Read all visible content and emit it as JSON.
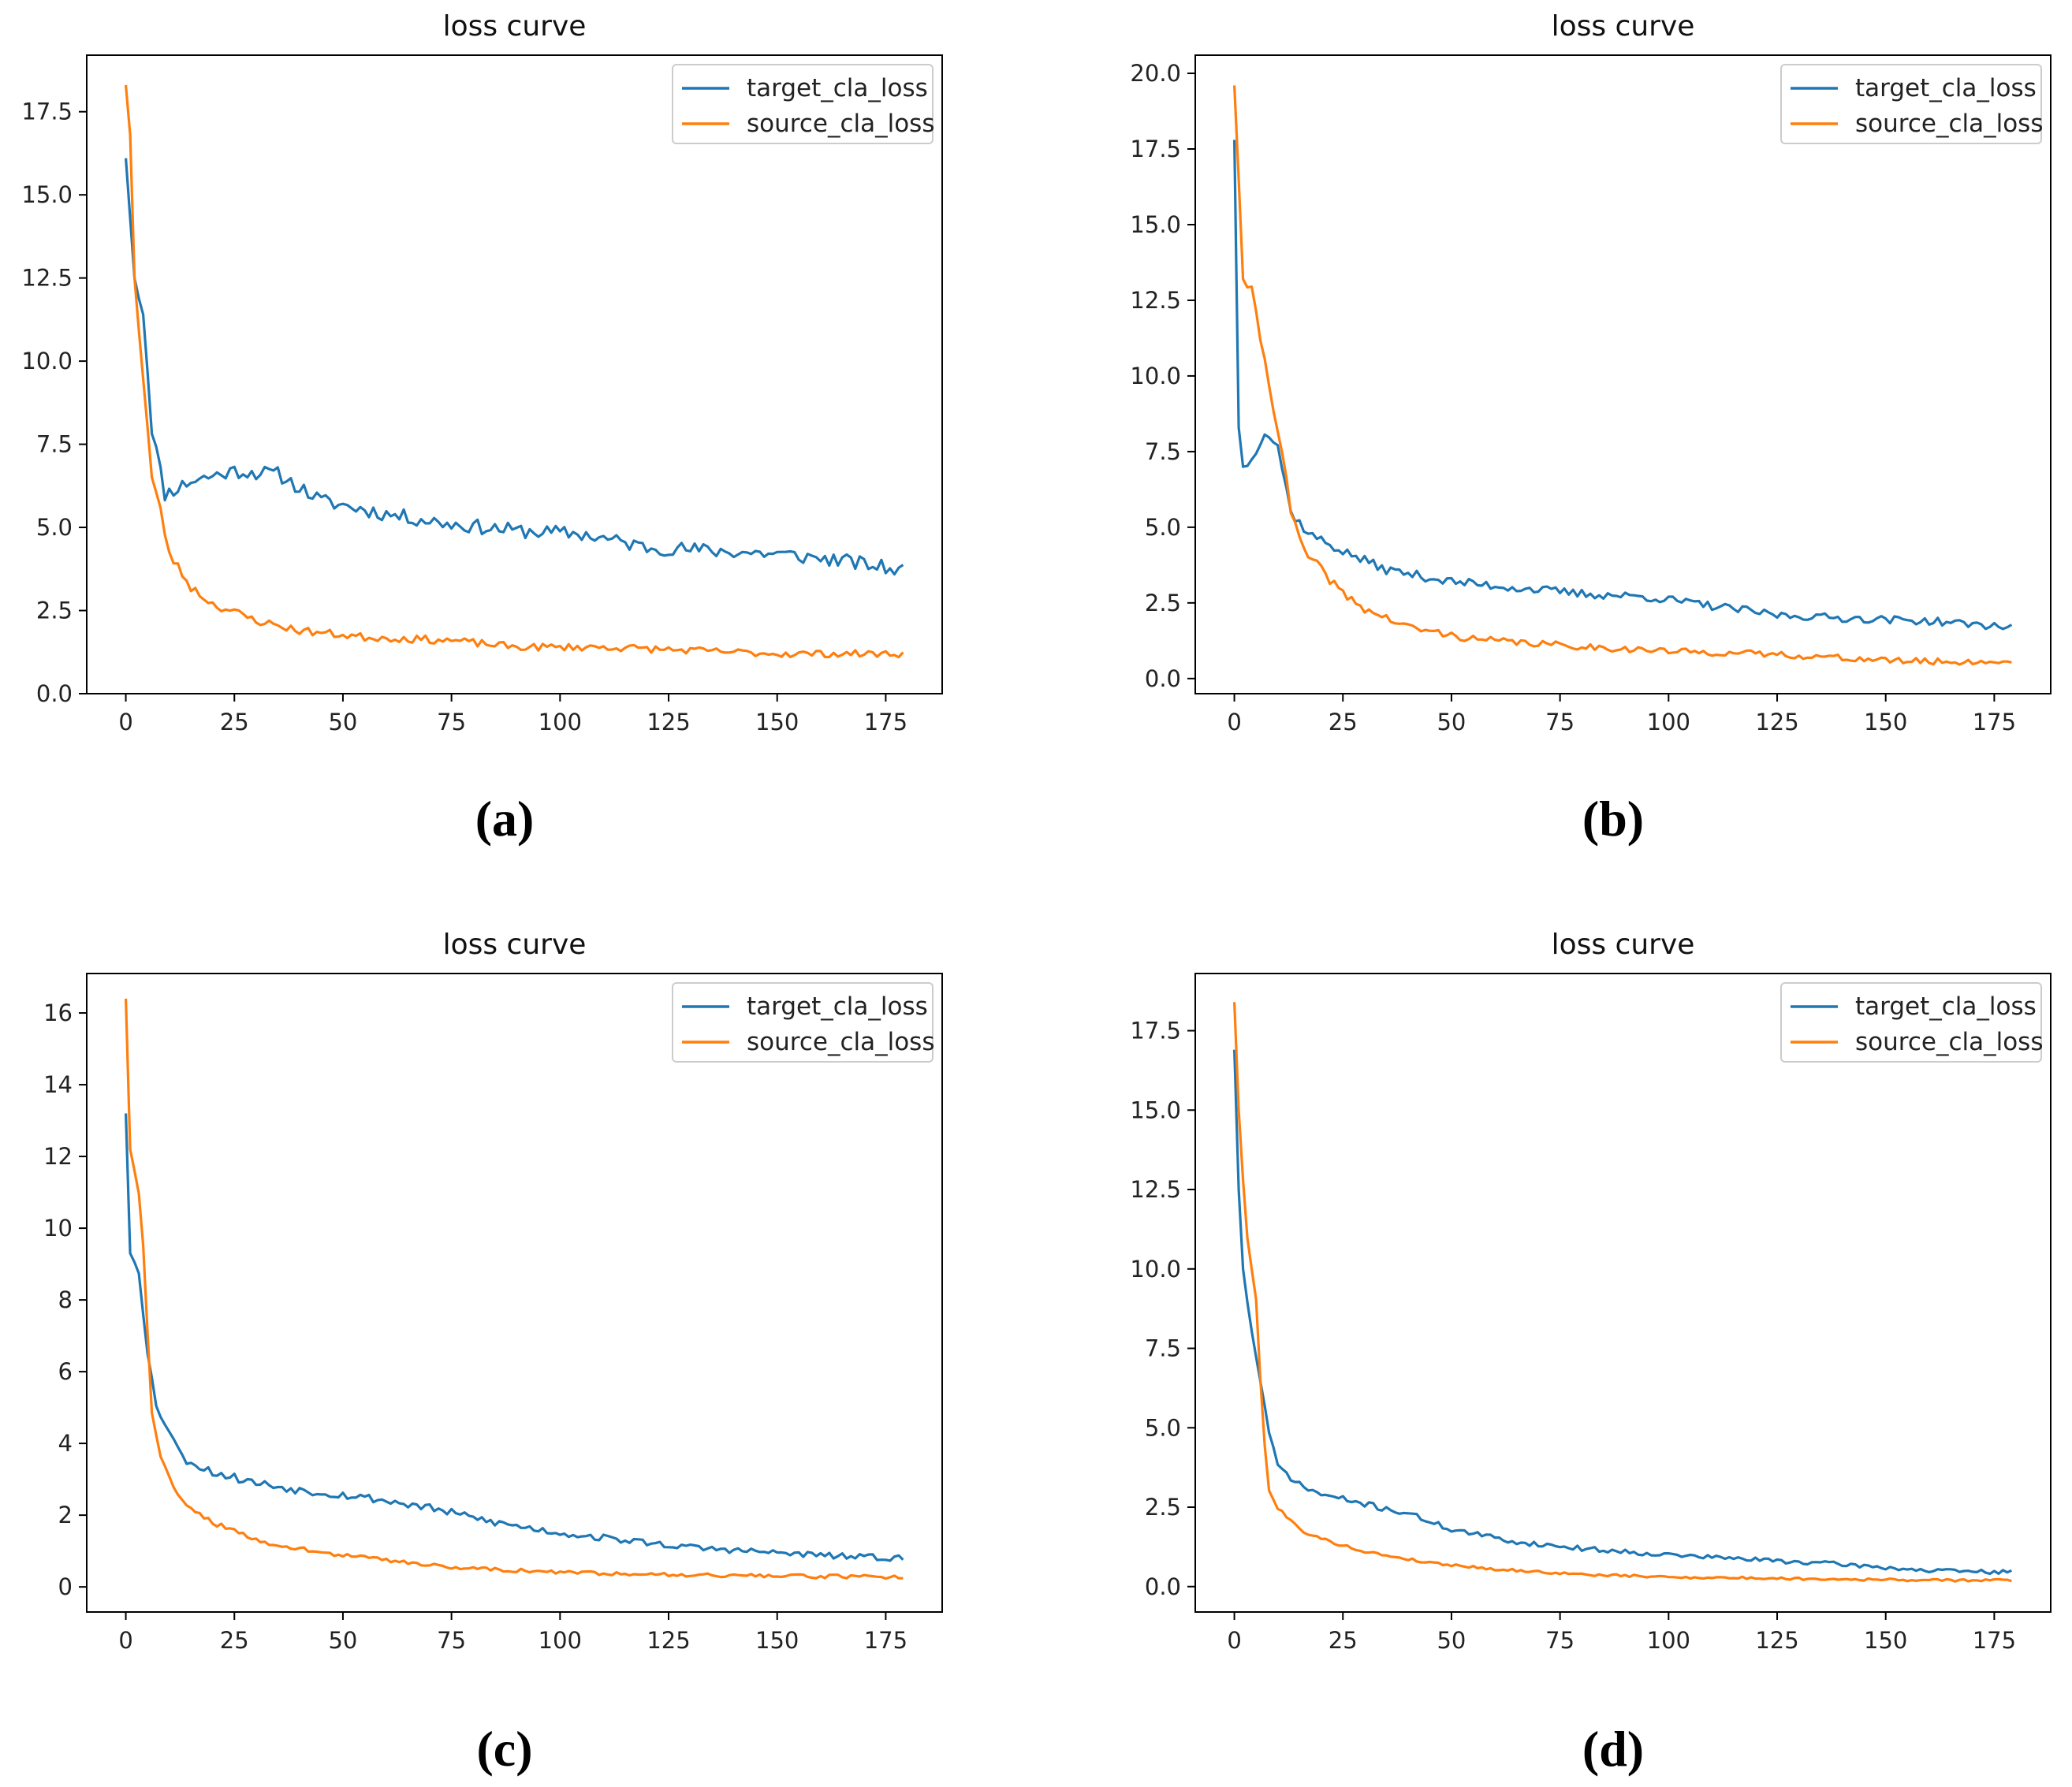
{
  "figure": {
    "colors": {
      "target": "#1f77b4",
      "source": "#ff7f0e",
      "axis": "#000000"
    },
    "series_names": [
      "target_cla_loss",
      "source_cla_loss"
    ]
  },
  "chart_data": [
    {
      "type": "line",
      "panel_label": "(a)",
      "title": "loss curve",
      "xlabel": "",
      "ylabel": "",
      "xlim": [
        -9,
        188
      ],
      "ylim": [
        0,
        19.2
      ],
      "xticks": [
        0,
        25,
        50,
        75,
        100,
        125,
        150,
        175
      ],
      "yticks": [
        0.0,
        2.5,
        5.0,
        7.5,
        10.0,
        12.5,
        15.0,
        17.5
      ],
      "ytick_labels": [
        "0.0",
        "2.5",
        "5.0",
        "7.5",
        "10.0",
        "12.5",
        "15.0",
        "17.5"
      ],
      "legend": "top-right",
      "series": [
        {
          "name": "target_cla_loss",
          "anchors": [
            [
              0,
              16.1
            ],
            [
              2,
              12.5
            ],
            [
              4,
              11.5
            ],
            [
              6,
              8.0
            ],
            [
              9,
              6.0
            ],
            [
              15,
              6.4
            ],
            [
              25,
              6.7
            ],
            [
              35,
              6.6
            ],
            [
              45,
              5.8
            ],
            [
              60,
              5.4
            ],
            [
              75,
              5.1
            ],
            [
              90,
              4.9
            ],
            [
              105,
              4.8
            ],
            [
              120,
              4.4
            ],
            [
              135,
              4.3
            ],
            [
              150,
              4.2
            ],
            [
              165,
              4.0
            ],
            [
              179,
              3.7
            ]
          ],
          "noise": 0.22,
          "seed": 11
        },
        {
          "name": "source_cla_loss",
          "anchors": [
            [
              0,
              18.3
            ],
            [
              1,
              16.8
            ],
            [
              2,
              12.5
            ],
            [
              3,
              11.0
            ],
            [
              5,
              8.0
            ],
            [
              6,
              6.5
            ],
            [
              8,
              5.5
            ],
            [
              10,
              4.2
            ],
            [
              15,
              3.2
            ],
            [
              20,
              2.7
            ],
            [
              30,
              2.2
            ],
            [
              40,
              1.9
            ],
            [
              55,
              1.7
            ],
            [
              75,
              1.6
            ],
            [
              90,
              1.4
            ],
            [
              110,
              1.4
            ],
            [
              130,
              1.3
            ],
            [
              150,
              1.2
            ],
            [
              165,
              1.2
            ],
            [
              179,
              1.2
            ]
          ],
          "noise": 0.14,
          "seed": 23
        }
      ]
    },
    {
      "type": "line",
      "panel_label": "(b)",
      "title": "loss curve",
      "xlabel": "",
      "ylabel": "",
      "xlim": [
        -9,
        188
      ],
      "ylim": [
        -0.5,
        20.6
      ],
      "xticks": [
        0,
        25,
        50,
        75,
        100,
        125,
        150,
        175
      ],
      "yticks": [
        0.0,
        2.5,
        5.0,
        7.5,
        10.0,
        12.5,
        15.0,
        17.5,
        20.0
      ],
      "ytick_labels": [
        "0.0",
        "2.5",
        "5.0",
        "7.5",
        "10.0",
        "12.5",
        "15.0",
        "17.5",
        "20.0"
      ],
      "legend": "top-right",
      "series": [
        {
          "name": "target_cla_loss",
          "anchors": [
            [
              0,
              17.8
            ],
            [
              1,
              8.3
            ],
            [
              2,
              7.0
            ],
            [
              4,
              7.2
            ],
            [
              7,
              8.2
            ],
            [
              10,
              7.7
            ],
            [
              13,
              5.5
            ],
            [
              17,
              4.8
            ],
            [
              25,
              4.2
            ],
            [
              35,
              3.6
            ],
            [
              50,
              3.2
            ],
            [
              65,
              3.0
            ],
            [
              80,
              2.8
            ],
            [
              95,
              2.7
            ],
            [
              110,
              2.4
            ],
            [
              125,
              2.1
            ],
            [
              140,
              2.0
            ],
            [
              160,
              1.9
            ],
            [
              179,
              1.7
            ]
          ],
          "noise": 0.15,
          "seed": 37
        },
        {
          "name": "source_cla_loss",
          "anchors": [
            [
              0,
              19.6
            ],
            [
              1,
              16.5
            ],
            [
              2,
              13.2
            ],
            [
              4,
              12.8
            ],
            [
              7,
              10.5
            ],
            [
              9,
              9.0
            ],
            [
              11,
              7.5
            ],
            [
              13,
              5.5
            ],
            [
              16,
              4.2
            ],
            [
              20,
              3.6
            ],
            [
              25,
              2.8
            ],
            [
              30,
              2.3
            ],
            [
              40,
              1.7
            ],
            [
              55,
              1.3
            ],
            [
              75,
              1.1
            ],
            [
              100,
              0.9
            ],
            [
              125,
              0.8
            ],
            [
              150,
              0.6
            ],
            [
              165,
              0.55
            ],
            [
              179,
              0.55
            ]
          ],
          "noise": 0.15,
          "seed": 41
        }
      ]
    },
    {
      "type": "line",
      "panel_label": "(c)",
      "title": "loss curve",
      "xlabel": "",
      "ylabel": "",
      "xlim": [
        -9,
        188
      ],
      "ylim": [
        -0.7,
        17.1
      ],
      "xticks": [
        0,
        25,
        50,
        75,
        100,
        125,
        150,
        175
      ],
      "yticks": [
        0,
        2,
        4,
        6,
        8,
        10,
        12,
        14,
        16
      ],
      "ytick_labels": [
        "0",
        "2",
        "4",
        "6",
        "8",
        "10",
        "12",
        "14",
        "16"
      ],
      "legend": "top-right",
      "series": [
        {
          "name": "target_cla_loss",
          "anchors": [
            [
              0,
              13.2
            ],
            [
              1,
              9.3
            ],
            [
              3,
              8.8
            ],
            [
              5,
              6.6
            ],
            [
              7,
              5.0
            ],
            [
              10,
              4.4
            ],
            [
              13,
              3.6
            ],
            [
              20,
              3.2
            ],
            [
              30,
              2.9
            ],
            [
              40,
              2.7
            ],
            [
              55,
              2.5
            ],
            [
              70,
              2.2
            ],
            [
              85,
              1.8
            ],
            [
              100,
              1.5
            ],
            [
              115,
              1.3
            ],
            [
              130,
              1.1
            ],
            [
              150,
              0.95
            ],
            [
              165,
              0.85
            ],
            [
              179,
              0.8
            ]
          ],
          "noise": 0.12,
          "seed": 53
        },
        {
          "name": "source_cla_loss",
          "anchors": [
            [
              0,
              16.4
            ],
            [
              1,
              12.2
            ],
            [
              3,
              11.0
            ],
            [
              4,
              9.5
            ],
            [
              6,
              4.8
            ],
            [
              8,
              3.6
            ],
            [
              12,
              2.5
            ],
            [
              20,
              1.8
            ],
            [
              30,
              1.3
            ],
            [
              45,
              0.95
            ],
            [
              60,
              0.75
            ],
            [
              75,
              0.55
            ],
            [
              100,
              0.4
            ],
            [
              125,
              0.35
            ],
            [
              150,
              0.3
            ],
            [
              179,
              0.28
            ]
          ],
          "noise": 0.08,
          "seed": 59
        }
      ]
    },
    {
      "type": "line",
      "panel_label": "(d)",
      "title": "loss curve",
      "xlabel": "",
      "ylabel": "",
      "xlim": [
        -9,
        188
      ],
      "ylim": [
        -0.8,
        19.3
      ],
      "xticks": [
        0,
        25,
        50,
        75,
        100,
        125,
        150,
        175
      ],
      "yticks": [
        0.0,
        2.5,
        5.0,
        7.5,
        10.0,
        12.5,
        15.0,
        17.5
      ],
      "ytick_labels": [
        "0.0",
        "2.5",
        "5.0",
        "7.5",
        "10.0",
        "12.5",
        "15.0",
        "17.5"
      ],
      "legend": "top-right",
      "series": [
        {
          "name": "target_cla_loss",
          "anchors": [
            [
              0,
              16.9
            ],
            [
              1,
              12.5
            ],
            [
              2,
              10.0
            ],
            [
              4,
              8.0
            ],
            [
              6,
              6.5
            ],
            [
              8,
              4.8
            ],
            [
              10,
              3.8
            ],
            [
              15,
              3.2
            ],
            [
              20,
              2.9
            ],
            [
              30,
              2.6
            ],
            [
              40,
              2.3
            ],
            [
              50,
              1.8
            ],
            [
              65,
              1.4
            ],
            [
              80,
              1.2
            ],
            [
              100,
              1.0
            ],
            [
              120,
              0.85
            ],
            [
              140,
              0.7
            ],
            [
              160,
              0.5
            ],
            [
              179,
              0.45
            ]
          ],
          "noise": 0.1,
          "seed": 71
        },
        {
          "name": "source_cla_loss",
          "anchors": [
            [
              0,
              18.4
            ],
            [
              1,
              15.0
            ],
            [
              2,
              12.8
            ],
            [
              3,
              11.0
            ],
            [
              5,
              9.0
            ],
            [
              6,
              6.5
            ],
            [
              7,
              4.5
            ],
            [
              8,
              3.0
            ],
            [
              10,
              2.5
            ],
            [
              15,
              1.8
            ],
            [
              20,
              1.5
            ],
            [
              30,
              1.1
            ],
            [
              45,
              0.75
            ],
            [
              60,
              0.55
            ],
            [
              80,
              0.38
            ],
            [
              100,
              0.3
            ],
            [
              130,
              0.25
            ],
            [
              160,
              0.2
            ],
            [
              179,
              0.2
            ]
          ],
          "noise": 0.06,
          "seed": 79
        }
      ]
    }
  ]
}
